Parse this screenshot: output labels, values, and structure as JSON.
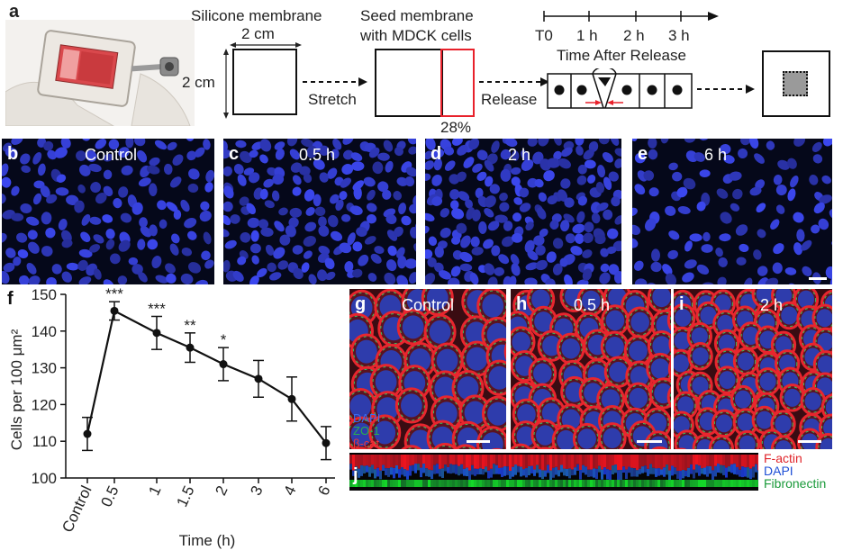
{
  "panel_a": {
    "letter": "a",
    "step1_title": "Silicone membrane",
    "width_label": "2 cm",
    "height_label": "2 cm",
    "stretch_label": "Stretch",
    "step2_title_line1": "Seed membrane",
    "step2_title_line2": "with MDCK cells",
    "percent_label": "28%",
    "release_label": "Release",
    "timeline_ticks": [
      "T0",
      "1 h",
      "2 h",
      "3 h"
    ],
    "timeline_title": "Time After Release",
    "colors": {
      "stretch_outline": "#e8212b",
      "arrow_red": "#e8212b"
    }
  },
  "panels_nuclei": [
    {
      "letter": "b",
      "label": "Control"
    },
    {
      "letter": "c",
      "label": "0.5 h"
    },
    {
      "letter": "d",
      "label": "2 h"
    },
    {
      "letter": "e",
      "label": "6 h"
    }
  ],
  "panels_confocal": [
    {
      "letter": "g",
      "label": "Control"
    },
    {
      "letter": "h",
      "label": "0.5 h"
    },
    {
      "letter": "i",
      "label": "2 h"
    }
  ],
  "confocal_legend": {
    "dapi": "DAPI",
    "zo1": "ZO-1",
    "bcat": "β-cat",
    "colors": {
      "dapi": "#1f4fd6",
      "zo1": "#1a9a3a",
      "bcat": "#e0242a"
    }
  },
  "panel_j": {
    "letter": "j",
    "legend": [
      "F-actin",
      "DAPI",
      "Fibronectin"
    ],
    "colors": [
      "#e0242a",
      "#1f4fd6",
      "#1a9a3a"
    ]
  },
  "chart_data": {
    "type": "line",
    "panel_letter": "f",
    "categories": [
      "Control",
      "0.5",
      "1",
      "1.5",
      "2",
      "3",
      "4",
      "6"
    ],
    "values": [
      112,
      145.5,
      139.5,
      135.5,
      131,
      127,
      121.5,
      109.5
    ],
    "errors": [
      4.5,
      2.5,
      4.5,
      4,
      4.5,
      5,
      6,
      4.5
    ],
    "significance": [
      "",
      "***",
      "***",
      "**",
      "*",
      "",
      "",
      ""
    ],
    "xlabel": "Time (h)",
    "ylabel": "Cells per 100 μm²",
    "ylim": [
      100,
      150
    ],
    "yticks": [
      100,
      110,
      120,
      130,
      140,
      150
    ],
    "grid": false
  }
}
